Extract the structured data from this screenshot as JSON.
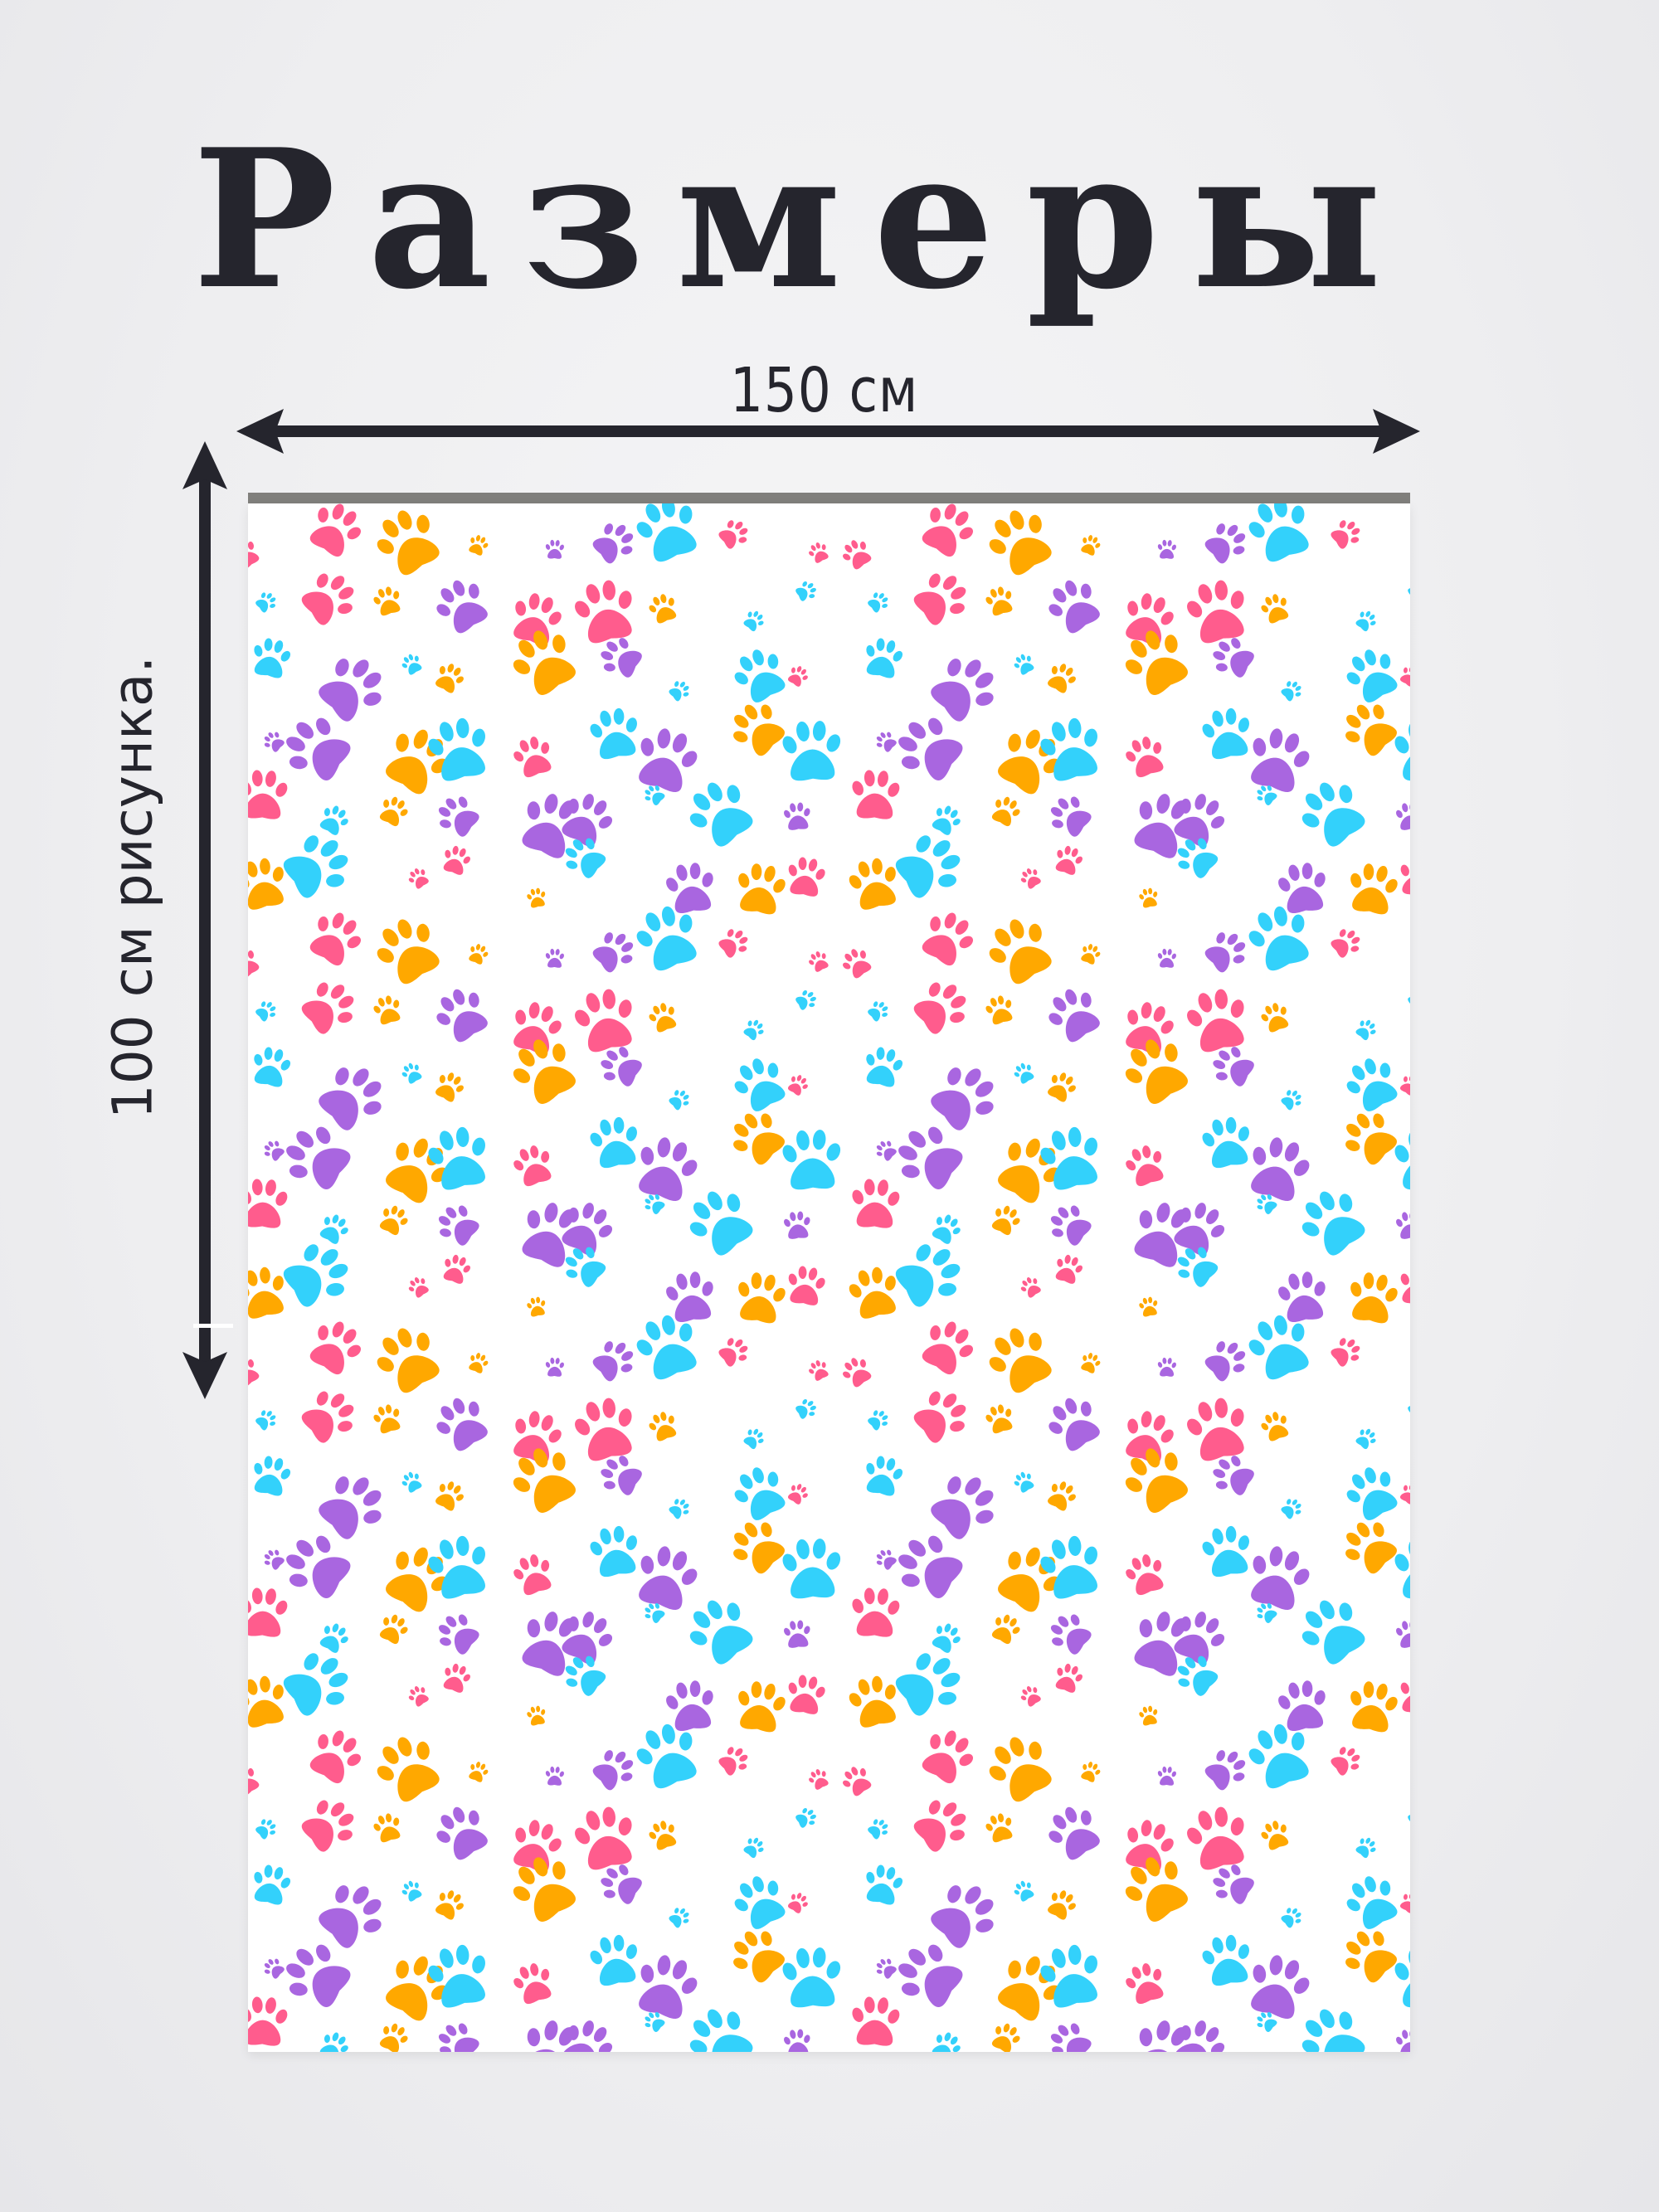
{
  "title": "Размеры",
  "width_label": "150 см",
  "height_label": "100 см рисунка.",
  "colors": {
    "text": "#25252d",
    "rod": "#807f7c",
    "paw_cyan": "#33d1fb",
    "paw_orange": "#ffa800",
    "paw_pink": "#ff5c8d",
    "paw_purple": "#a966e0"
  },
  "pattern": {
    "icon": "paw-print-icon"
  }
}
